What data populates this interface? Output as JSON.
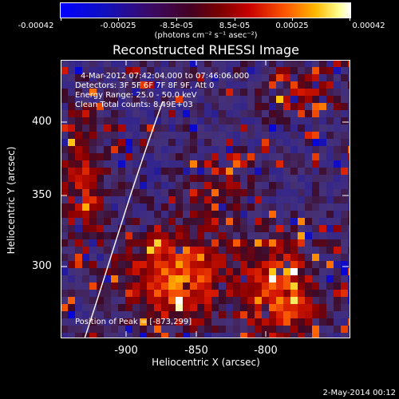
{
  "colorbar": {
    "tick_labels": [
      "-0.00042",
      "-0.00025",
      "-8.5e-05",
      "8.5e-05",
      "0.00025",
      "0.00042"
    ],
    "units": "(photons cm⁻² s⁻¹ asec⁻²)"
  },
  "title": "Reconstructed RHESSI Image",
  "info": {
    "time_range": "4-Mar-2012 07:42:04.000 to 07:46:06.000",
    "detectors": "Detectors: 3F 5F 6F 7F 8F 9F, Att 0",
    "energy_range": "Energy Range: 25.0 - 50.0 keV",
    "method": "Clean    Total counts: 8.49E+03",
    "peak": "Position of Peak = [-873,299]"
  },
  "axes": {
    "xlabel": "Heliocentric X (arcsec)",
    "ylabel": "Heliocentric Y (arcsec)",
    "x_ticks": [
      "-900",
      "-850",
      "-800"
    ],
    "y_ticks": [
      "400",
      "350",
      "300"
    ],
    "x_range": [
      -945,
      -745
    ],
    "y_range": [
      252,
      430
    ]
  },
  "timestamp": "2-May-2014 00:12",
  "colors": {
    "background": "#000000",
    "limb": "#ffffff"
  }
}
